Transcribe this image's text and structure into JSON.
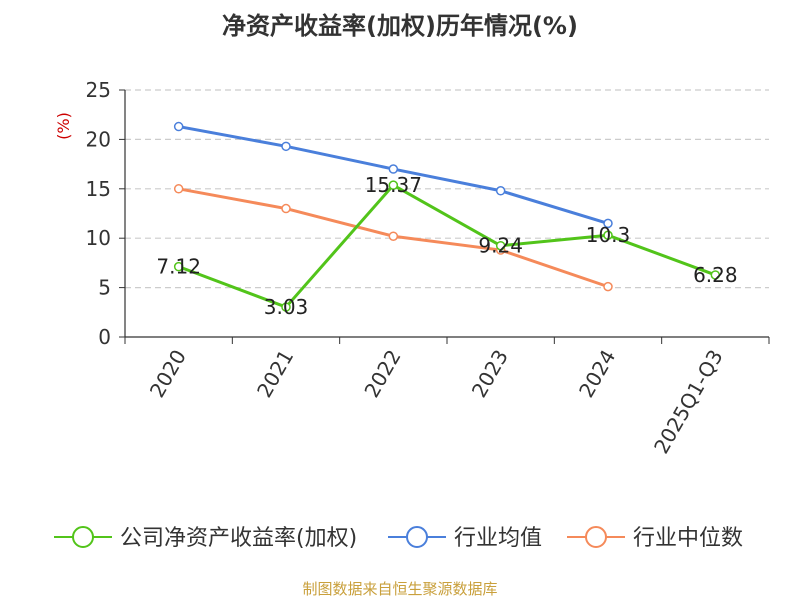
{
  "chart_data": {
    "type": "line",
    "title": "净资产收益率(加权)历年情况(%)",
    "ylabel": "(%)",
    "xlabel": "",
    "categories": [
      "2020",
      "2021",
      "2022",
      "2023",
      "2024",
      "2025Q1-Q3"
    ],
    "ylim": [
      0,
      25
    ],
    "yticks": [
      0,
      5,
      10,
      15,
      20,
      25
    ],
    "grid": "horizontal dashed",
    "legend_position": "bottom",
    "series": [
      {
        "name": "公司净资产收益率(加权)",
        "color": "#52c41a",
        "values": [
          7.12,
          3.03,
          15.37,
          9.24,
          10.3,
          6.28
        ],
        "labels": [
          "7.12",
          "3.03",
          "15.37",
          "9.24",
          "10.3",
          "6.28"
        ]
      },
      {
        "name": "行业均值",
        "color": "#4a7fdb",
        "values": [
          21.3,
          19.3,
          17.0,
          14.8,
          11.5,
          null
        ]
      },
      {
        "name": "行业中位数",
        "color": "#f58a5a",
        "values": [
          15.0,
          13.0,
          10.2,
          8.8,
          5.1,
          null
        ]
      }
    ]
  },
  "source_note": "制图数据来自恒生聚源数据库"
}
